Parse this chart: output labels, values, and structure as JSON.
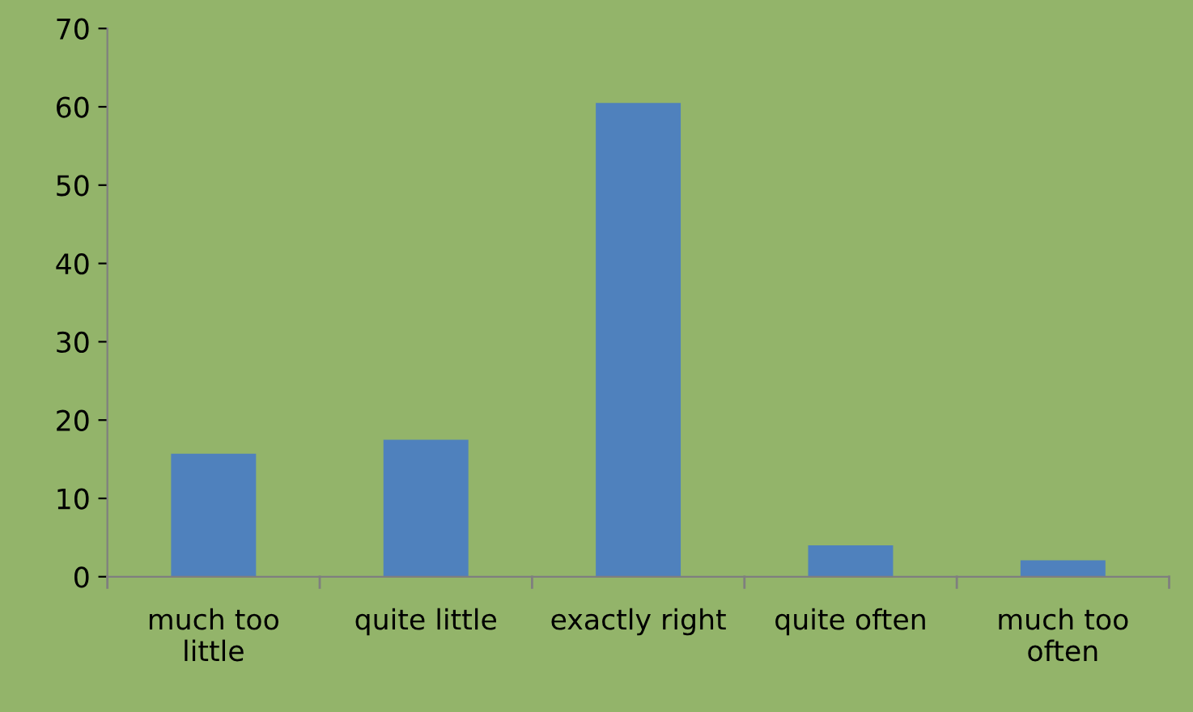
{
  "chart_data": {
    "type": "bar",
    "categories": [
      "much too\nlittle",
      "quite little",
      "exactly right",
      "quite often",
      "much too\noften"
    ],
    "values": [
      15.7,
      17.5,
      60.5,
      4.0,
      2.1
    ],
    "color": "#4f81bd",
    "ylim": [
      0,
      70
    ],
    "yticks": [
      0,
      10,
      20,
      30,
      40,
      50,
      60,
      70
    ],
    "grid": false,
    "legend": false
  }
}
